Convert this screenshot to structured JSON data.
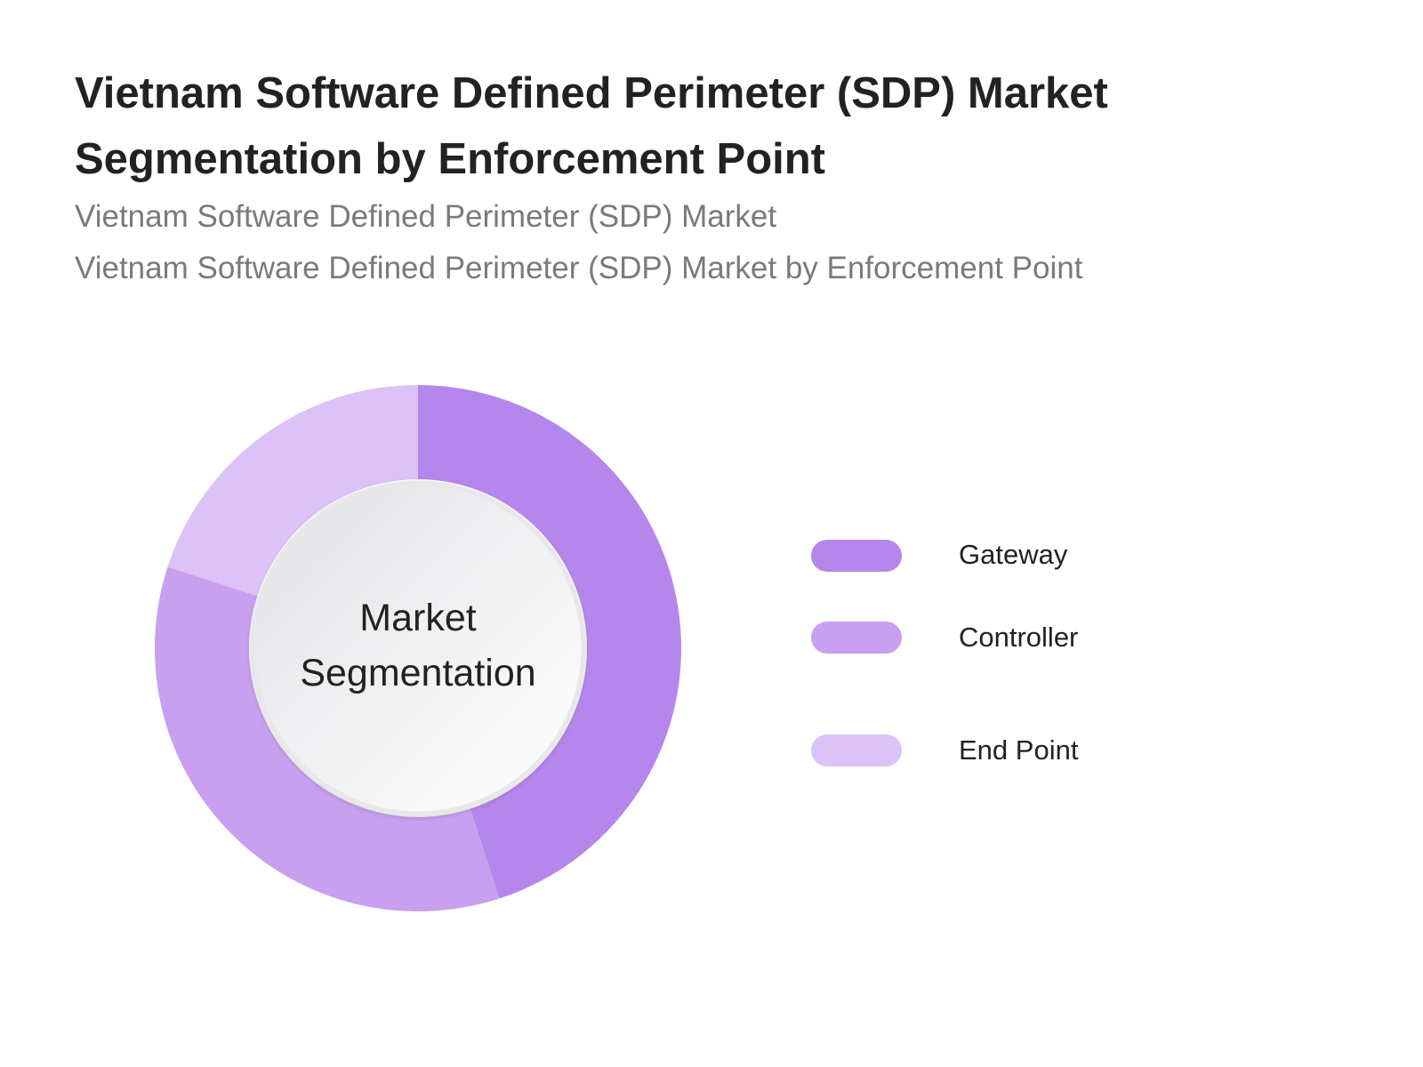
{
  "header": {
    "title": "Vietnam Software Defined Perimeter (SDP) Market Segmentation by Enforcement Point",
    "subtitle_1": "Vietnam Software Defined Perimeter (SDP) Market",
    "subtitle_2": "Vietnam Software Defined Perimeter (SDP) Market by Enforcement Point"
  },
  "chart_data": {
    "type": "pie",
    "variant": "donut",
    "center_label_line1": "Market",
    "center_label_line2": "Segmentation",
    "series": [
      {
        "name": "Gateway",
        "value": 45,
        "color": "#b586ec"
      },
      {
        "name": "Controller",
        "value": 35,
        "color": "#c8a0ef"
      },
      {
        "name": "End Point",
        "value": 20,
        "color": "#dcc2f7"
      }
    ],
    "legend_placement": "right"
  }
}
